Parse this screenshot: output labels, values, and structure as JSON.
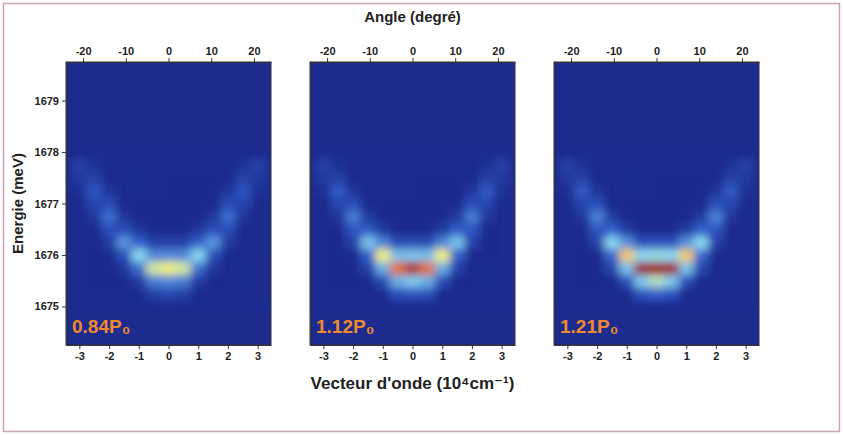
{
  "figure": {
    "x2label": "Angle (degré)",
    "ylabel": "Energie (meV)",
    "xlabel": "Vecteur d'onde  (10⁴cm⁻¹)"
  },
  "chart_data": [
    {
      "type": "heatmap",
      "annotation": "0.84P₀",
      "xlim": [
        -3.45,
        3.45
      ],
      "xticks": [
        -3,
        -2,
        -1,
        0,
        1,
        2,
        3
      ],
      "x2lim": [
        -24,
        24
      ],
      "x2ticks": [
        -20,
        -10,
        0,
        10,
        20
      ],
      "ylim": [
        1674.25,
        1679.75
      ],
      "yticks": [
        1675,
        1676,
        1677,
        1678,
        1679
      ],
      "color_range": [
        0,
        1
      ],
      "x": [
        -3,
        -2.5,
        -2,
        -1.5,
        -1,
        -0.5,
        0,
        0.5,
        1,
        1.5,
        2,
        2.5,
        3
      ],
      "y": [
        1675.25,
        1675.5,
        1675.75,
        1676.0,
        1676.25,
        1676.5,
        1676.75,
        1677.0,
        1677.25,
        1677.5,
        1677.75
      ],
      "z": [
        [
          0,
          0,
          0,
          0,
          0,
          0.04,
          0.05,
          0.04,
          0,
          0,
          0,
          0,
          0
        ],
        [
          0,
          0,
          0,
          0,
          0.03,
          0.14,
          0.16,
          0.14,
          0.03,
          0,
          0,
          0,
          0
        ],
        [
          0,
          0,
          0,
          0.02,
          0.12,
          0.4,
          0.45,
          0.4,
          0.12,
          0.02,
          0,
          0,
          0
        ],
        [
          0,
          0,
          0,
          0.07,
          0.28,
          0.16,
          0.16,
          0.16,
          0.28,
          0.07,
          0,
          0,
          0
        ],
        [
          0,
          0,
          0.03,
          0.18,
          0.1,
          0.04,
          0.04,
          0.04,
          0.1,
          0.18,
          0.03,
          0,
          0
        ],
        [
          0,
          0,
          0.07,
          0.07,
          0.02,
          0,
          0,
          0,
          0.02,
          0.07,
          0.07,
          0,
          0
        ],
        [
          0,
          0.02,
          0.12,
          0.02,
          0,
          0,
          0,
          0,
          0,
          0.02,
          0.12,
          0.02,
          0
        ],
        [
          0,
          0.05,
          0.06,
          0,
          0,
          0,
          0,
          0,
          0,
          0,
          0.06,
          0.05,
          0
        ],
        [
          0.01,
          0.08,
          0.02,
          0,
          0,
          0,
          0,
          0,
          0,
          0,
          0.02,
          0.08,
          0.01
        ],
        [
          0.03,
          0.04,
          0,
          0,
          0,
          0,
          0,
          0,
          0,
          0,
          0,
          0.04,
          0.03
        ],
        [
          0.04,
          0.01,
          0,
          0,
          0,
          0,
          0,
          0,
          0,
          0,
          0,
          0.01,
          0.04
        ]
      ]
    },
    {
      "type": "heatmap",
      "annotation": "1.12P₀",
      "tick_labels": "x",
      "xlim": [
        -3.45,
        3.45
      ],
      "xticks": [
        -3,
        -2,
        -1,
        0,
        1,
        2,
        3
      ],
      "x2lim": [
        -24,
        24
      ],
      "x2ticks": [
        -20,
        -10,
        0,
        10,
        20
      ],
      "ylim": [
        1674.25,
        1679.75
      ],
      "color_range": [
        0,
        1
      ],
      "x": [
        -3,
        -2.5,
        -2,
        -1.5,
        -1,
        -0.5,
        0,
        0.5,
        1,
        1.5,
        2,
        2.5,
        3
      ],
      "y": [
        1675.25,
        1675.5,
        1675.75,
        1676.0,
        1676.25,
        1676.5,
        1676.75,
        1677.0,
        1677.25,
        1677.5,
        1677.75
      ],
      "z": [
        [
          0,
          0,
          0,
          0,
          0,
          0.07,
          0.08,
          0.07,
          0,
          0,
          0,
          0,
          0
        ],
        [
          0,
          0,
          0,
          0,
          0.06,
          0.22,
          0.26,
          0.22,
          0.06,
          0,
          0,
          0,
          0
        ],
        [
          0,
          0,
          0,
          0.04,
          0.22,
          0.62,
          0.72,
          0.62,
          0.22,
          0.04,
          0,
          0,
          0
        ],
        [
          0,
          0,
          0,
          0.1,
          0.45,
          0.24,
          0.25,
          0.24,
          0.45,
          0.1,
          0,
          0,
          0
        ],
        [
          0,
          0,
          0.04,
          0.25,
          0.15,
          0.06,
          0.06,
          0.06,
          0.15,
          0.25,
          0.04,
          0,
          0
        ],
        [
          0,
          0,
          0.08,
          0.09,
          0.03,
          0,
          0,
          0,
          0.03,
          0.09,
          0.08,
          0,
          0
        ],
        [
          0,
          0.02,
          0.14,
          0.03,
          0,
          0,
          0,
          0,
          0,
          0.03,
          0.14,
          0.02,
          0
        ],
        [
          0,
          0.05,
          0.07,
          0,
          0,
          0,
          0,
          0,
          0,
          0,
          0.07,
          0.05,
          0
        ],
        [
          0.01,
          0.09,
          0.02,
          0,
          0,
          0,
          0,
          0,
          0,
          0,
          0.02,
          0.09,
          0.01
        ],
        [
          0.03,
          0.04,
          0,
          0,
          0,
          0,
          0,
          0,
          0,
          0,
          0,
          0.04,
          0.03
        ],
        [
          0.04,
          0.01,
          0,
          0,
          0,
          0,
          0,
          0,
          0,
          0,
          0,
          0.01,
          0.04
        ]
      ]
    },
    {
      "type": "heatmap",
      "annotation": "1.21P₀",
      "tick_labels": "x",
      "xlim": [
        -3.45,
        3.45
      ],
      "xticks": [
        -3,
        -2,
        -1,
        0,
        1,
        2,
        3
      ],
      "x2lim": [
        -24,
        24
      ],
      "x2ticks": [
        -20,
        -10,
        0,
        10,
        20
      ],
      "ylim": [
        1674.25,
        1679.75
      ],
      "color_range": [
        0,
        1
      ],
      "x": [
        -3,
        -2.5,
        -2,
        -1.5,
        -1,
        -0.5,
        0,
        0.5,
        1,
        1.5,
        2,
        2.5,
        3
      ],
      "y": [
        1675.25,
        1675.5,
        1675.75,
        1676.0,
        1676.25,
        1676.5,
        1676.75,
        1677.0,
        1677.25,
        1677.5,
        1677.75
      ],
      "z": [
        [
          0,
          0,
          0,
          0,
          0,
          0.08,
          0.1,
          0.08,
          0,
          0,
          0,
          0,
          0
        ],
        [
          0,
          0,
          0,
          0,
          0.07,
          0.26,
          0.35,
          0.26,
          0.07,
          0,
          0,
          0,
          0
        ],
        [
          0,
          0,
          0,
          0.05,
          0.25,
          0.75,
          1.0,
          0.75,
          0.25,
          0.05,
          0,
          0,
          0
        ],
        [
          0,
          0,
          0,
          0.11,
          0.5,
          0.28,
          0.3,
          0.28,
          0.5,
          0.11,
          0,
          0,
          0
        ],
        [
          0,
          0,
          0.04,
          0.28,
          0.17,
          0.07,
          0.07,
          0.07,
          0.17,
          0.28,
          0.04,
          0,
          0
        ],
        [
          0,
          0,
          0.08,
          0.1,
          0.03,
          0,
          0,
          0,
          0.03,
          0.1,
          0.08,
          0,
          0
        ],
        [
          0,
          0.02,
          0.15,
          0.03,
          0,
          0,
          0,
          0,
          0,
          0.03,
          0.15,
          0.02,
          0
        ],
        [
          0,
          0.05,
          0.07,
          0,
          0,
          0,
          0,
          0,
          0,
          0,
          0.07,
          0.05,
          0
        ],
        [
          0.01,
          0.09,
          0.02,
          0,
          0,
          0,
          0,
          0,
          0,
          0,
          0.02,
          0.09,
          0.01
        ],
        [
          0.03,
          0.04,
          0,
          0,
          0,
          0,
          0,
          0,
          0,
          0,
          0,
          0.04,
          0.03
        ],
        [
          0.04,
          0.01,
          0,
          0,
          0,
          0,
          0,
          0,
          0,
          0,
          0,
          0.01,
          0.04
        ]
      ]
    }
  ]
}
